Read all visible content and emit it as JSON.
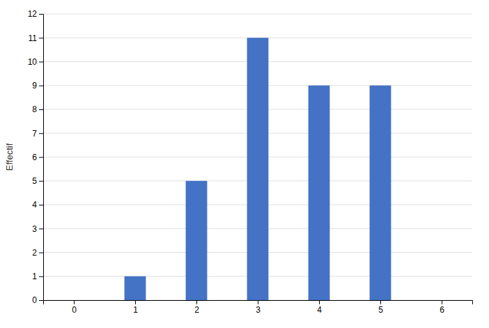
{
  "chart_data": {
    "type": "bar",
    "x": [
      1,
      2,
      3,
      4,
      5
    ],
    "values": [
      1,
      5,
      11,
      9,
      9
    ],
    "color": "#4472C4",
    "ylabel": "Effectif",
    "xlim": [
      -0.5,
      6.5
    ],
    "xticks": [
      0,
      1,
      2,
      3,
      4,
      5,
      6
    ],
    "ylim": [
      0,
      12
    ],
    "yticks": [
      0,
      1,
      2,
      3,
      4,
      5,
      6,
      7,
      8,
      9,
      10,
      11,
      12
    ],
    "grid": true
  }
}
